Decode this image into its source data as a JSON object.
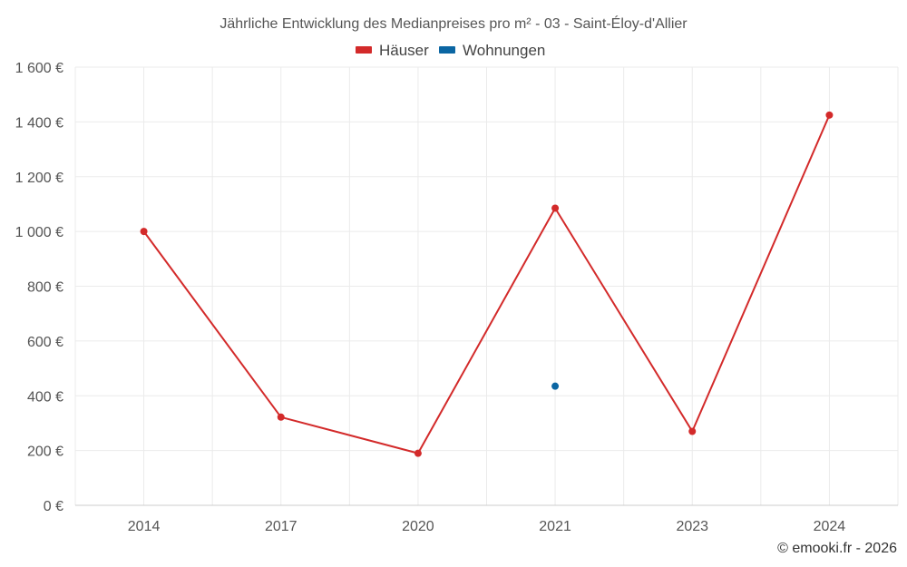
{
  "chart_data": {
    "type": "line",
    "title": "Jährliche Entwicklung des Medianpreises pro m² - 03 - Saint-Éloy-d'Allier",
    "categories": [
      "2014",
      "2017",
      "2020",
      "2021",
      "2023",
      "2024"
    ],
    "series": [
      {
        "name": "Häuser",
        "color": "#d32a2a",
        "values": [
          1000,
          322,
          190,
          1085,
          270,
          1425
        ]
      },
      {
        "name": "Wohnungen",
        "color": "#0b66a3",
        "values": [
          null,
          null,
          null,
          435,
          null,
          null
        ]
      }
    ],
    "ylim": [
      0,
      1600
    ],
    "yticks": [
      0,
      200,
      400,
      600,
      800,
      1000,
      1200,
      1400,
      1600
    ],
    "ytick_labels": [
      "0 €",
      "200 €",
      "400 €",
      "600 €",
      "800 €",
      "1 000 €",
      "1 200 €",
      "1 400 €",
      "1 600 €"
    ],
    "grid": true,
    "legend": "top-center",
    "xlabel": "",
    "ylabel": ""
  },
  "credit": "© emooki.fr - 2026"
}
